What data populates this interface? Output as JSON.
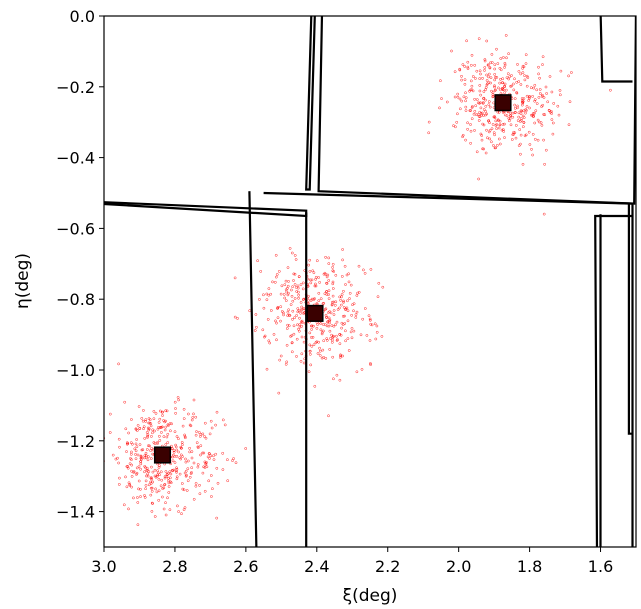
{
  "chart_data": {
    "type": "scatter",
    "xlabel": "ξ(deg)",
    "ylabel": "η(deg)",
    "xlim": [
      3.0,
      1.5
    ],
    "ylim": [
      -1.5,
      0.0
    ],
    "x_inverted": true,
    "x_ticks": [
      3.0,
      2.8,
      2.6,
      2.4,
      2.2,
      2.0,
      1.8,
      1.6
    ],
    "x_tick_labels": [
      "3.0",
      "2.8",
      "2.6",
      "2.4",
      "2.2",
      "2.0",
      "1.8",
      "1.6"
    ],
    "y_ticks": [
      0.0,
      -0.2,
      -0.4,
      -0.6,
      -0.8,
      -1.0,
      -1.2,
      -1.4
    ],
    "y_tick_labels": [
      "0.0",
      "−0.2",
      "−0.4",
      "−0.6",
      "−0.8",
      "−1.0",
      "−1.2",
      "−1.4"
    ],
    "grid": false,
    "point_color": "#ff0000",
    "marker_color": "#000000",
    "clusters": [
      {
        "center": [
          1.875,
          -0.245
        ],
        "spread": 0.075,
        "count": 420
      },
      {
        "center": [
          2.405,
          -0.84
        ],
        "spread": 0.075,
        "count": 420
      },
      {
        "center": [
          2.835,
          -1.24
        ],
        "spread": 0.075,
        "count": 420
      }
    ],
    "markers": [
      {
        "x": 1.875,
        "y": -0.245,
        "half_size": 0.022
      },
      {
        "x": 2.405,
        "y": -0.84,
        "half_size": 0.022
      },
      {
        "x": 2.835,
        "y": -1.24,
        "half_size": 0.022
      }
    ],
    "footprints": [
      [
        [
          2.405,
          0.02
        ],
        [
          2.42,
          -0.49
        ],
        [
          2.43,
          -0.49
        ],
        [
          2.415,
          0.02
        ]
      ],
      [
        [
          2.385,
          0.02
        ],
        [
          2.395,
          -0.495
        ],
        [
          1.505,
          -0.53
        ],
        [
          1.5,
          0.02
        ]
      ],
      [
        [
          1.6,
          0.02
        ],
        [
          1.595,
          -0.185
        ],
        [
          1.51,
          -0.185
        ]
      ],
      [
        [
          3.02,
          -0.525
        ],
        [
          2.43,
          -0.55
        ],
        [
          2.43,
          -0.565
        ],
        [
          3.02,
          -0.53
        ]
      ],
      [
        [
          2.59,
          -0.495
        ],
        [
          2.57,
          -1.52
        ],
        [
          2.43,
          -1.52
        ],
        [
          2.43,
          -0.555
        ]
      ],
      [
        [
          2.55,
          -0.5
        ],
        [
          1.51,
          -0.53
        ],
        [
          1.51,
          -1.52
        ],
        [
          2.56,
          -1.52
        ]
      ],
      [
        [
          1.52,
          -0.53
        ],
        [
          1.52,
          -1.18
        ],
        [
          1.51,
          -1.18
        ]
      ],
      [
        [
          1.6,
          -0.56
        ],
        [
          1.6,
          -1.52
        ],
        [
          1.61,
          -1.52
        ],
        [
          1.615,
          -0.565
        ],
        [
          1.51,
          -0.565
        ]
      ],
      [
        [
          2.7,
          -1.505
        ],
        [
          2.42,
          -1.51
        ],
        [
          2.42,
          -1.52
        ]
      ]
    ]
  }
}
